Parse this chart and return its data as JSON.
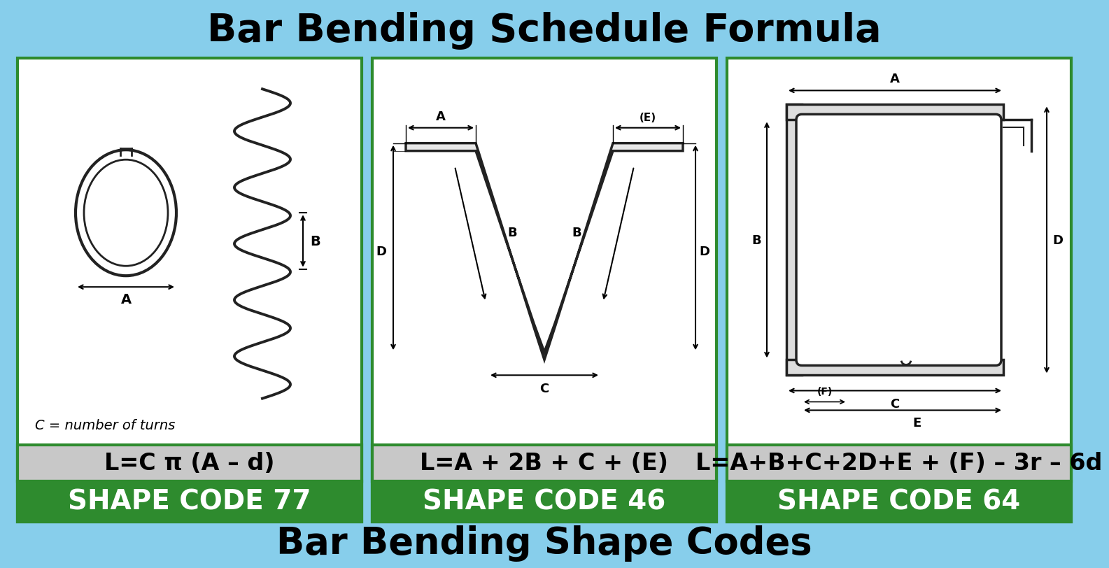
{
  "title": "Bar Bending Schedule Formula",
  "subtitle": "Bar Bending Shape Codes",
  "bg_color": "#87CEEB",
  "panel_bg": "#FFFFFF",
  "green_border": "#2E8B2E",
  "green_bar_bg": "#2E8B2E",
  "gray_formula_bg": "#C8C8C8",
  "shape_codes": [
    "SHAPE CODE 77",
    "SHAPE CODE 46",
    "SHAPE CODE 64"
  ],
  "formulas": [
    "L=C π (A – d)",
    "L=A + 2B + C + (E)",
    "L=A+B+C+2D+E + (F) – 3r – 6d"
  ],
  "note_77": "C = number of turns",
  "title_fontsize": 40,
  "subtitle_fontsize": 38,
  "formula_fontsize": 24,
  "code_fontsize": 28,
  "note_fontsize": 14
}
